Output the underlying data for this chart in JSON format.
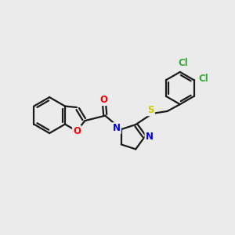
{
  "background_color": "#ebebeb",
  "bond_color": "#1a1a1a",
  "bond_width": 1.6,
  "atom_colors": {
    "O_carbonyl": "#ff0000",
    "O_furan": "#ff0000",
    "N": "#0000ee",
    "S": "#cccc00",
    "Cl": "#33aa33",
    "C": "#1a1a1a"
  },
  "figsize": [
    3.0,
    3.0
  ],
  "dpi": 100
}
